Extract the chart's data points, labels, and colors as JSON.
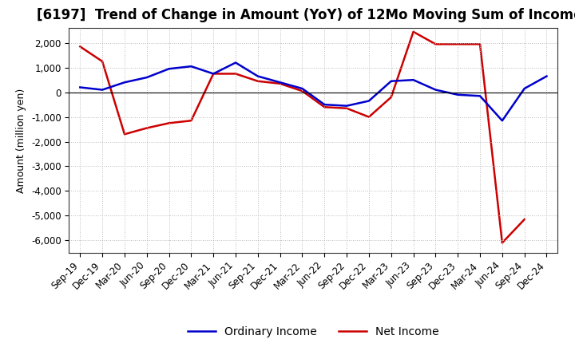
{
  "title": "[6197]  Trend of Change in Amount (YoY) of 12Mo Moving Sum of Incomes",
  "ylabel": "Amount (million yen)",
  "x_labels": [
    "Sep-19",
    "Dec-19",
    "Mar-20",
    "Jun-20",
    "Sep-20",
    "Dec-20",
    "Mar-21",
    "Jun-21",
    "Sep-21",
    "Dec-21",
    "Mar-22",
    "Jun-22",
    "Sep-22",
    "Dec-22",
    "Mar-23",
    "Jun-23",
    "Sep-23",
    "Dec-23",
    "Mar-24",
    "Jun-24",
    "Sep-24",
    "Dec-24"
  ],
  "ordinary_income": [
    200,
    100,
    400,
    600,
    950,
    1050,
    750,
    1200,
    650,
    400,
    150,
    -500,
    -550,
    -350,
    450,
    500,
    100,
    -100,
    -150,
    -1150,
    150,
    650
  ],
  "net_income": [
    1850,
    1250,
    -1700,
    -1450,
    -1250,
    -1150,
    750,
    750,
    450,
    350,
    50,
    -600,
    -650,
    -1000,
    -200,
    2450,
    1950,
    1950,
    1950,
    -6100,
    -5150,
    null
  ],
  "ordinary_income_color": "#0000cc",
  "net_income_color": "#cc0000",
  "ylim": [
    -6500,
    2600
  ],
  "yticks": [
    -6000,
    -5000,
    -4000,
    -3000,
    -2000,
    -1000,
    0,
    1000,
    2000
  ],
  "background_color": "#ffffff",
  "grid_color": "#bbbbbb",
  "title_fontsize": 12,
  "axis_fontsize": 9,
  "tick_fontsize": 8.5,
  "legend_fontsize": 10,
  "line_width": 1.8
}
